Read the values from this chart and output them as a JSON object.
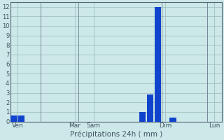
{
  "title": "",
  "xlabel": "Précipitations 24h ( mm )",
  "ylabel": "",
  "bg_color": "#cce8e8",
  "bar_color": "#1144cc",
  "grid_color": "#99bbbb",
  "axis_color": "#556677",
  "text_color": "#445566",
  "ylim": [
    0,
    12.5
  ],
  "yticks": [
    0,
    1,
    2,
    3,
    4,
    5,
    6,
    7,
    8,
    9,
    10,
    11,
    12
  ],
  "day_names": [
    "Ven",
    "Mar",
    "Sam",
    "Dim",
    "Lun"
  ],
  "num_bars": 28,
  "bar_values": [
    0.65,
    0.65,
    0,
    0,
    0,
    0,
    0,
    0,
    0,
    0,
    0,
    0,
    0,
    0,
    0,
    0,
    0,
    1.0,
    2.8,
    12.0,
    0,
    0.4,
    0,
    0,
    0,
    0,
    0,
    0
  ],
  "bar_width": 0.85
}
